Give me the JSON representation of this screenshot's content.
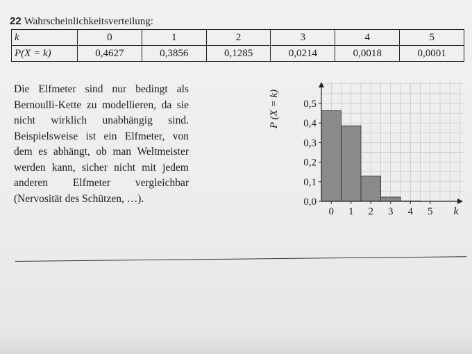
{
  "task": {
    "number": "22",
    "title": "Wahrscheinlichkeitsverteilung:"
  },
  "table": {
    "row_labels": [
      "k",
      "P(X = k)"
    ],
    "k_values": [
      "0",
      "1",
      "2",
      "3",
      "4",
      "5"
    ],
    "p_values": [
      "0,4627",
      "0,3856",
      "0,1285",
      "0,0214",
      "0,0018",
      "0,0001"
    ]
  },
  "paragraph": "Die Elfmeter sind nur bedingt als Bernoulli-Kette zu modellieren, da sie nicht wirklich unabhängig sind. Beispielsweise ist ein Elfmeter, von dem es abhängt, ob man Weltmeister werden kann, sicher nicht mit jedem anderen Elfmeter vergleichbar (Nervosität des Schützen, …).",
  "chart_data": {
    "type": "bar",
    "categories": [
      "0",
      "1",
      "2",
      "3",
      "4",
      "5"
    ],
    "values": [
      0.4627,
      0.3856,
      0.1285,
      0.0214,
      0.0018,
      0.0001
    ],
    "xlabel": "k",
    "ylabel": "P (X = k)",
    "ylim": [
      0,
      0.6
    ],
    "y_ticks": [
      0,
      0.1,
      0.2,
      0.3,
      0.4,
      0.5
    ],
    "y_tick_labels": [
      "0,0",
      "0,1",
      "0,2",
      "0,3",
      "0,4",
      "0,5"
    ],
    "x_tick_labels": [
      "0",
      "1",
      "2",
      "3",
      "4",
      "5"
    ],
    "grid": true,
    "bar_color": "#8a8a8a"
  }
}
